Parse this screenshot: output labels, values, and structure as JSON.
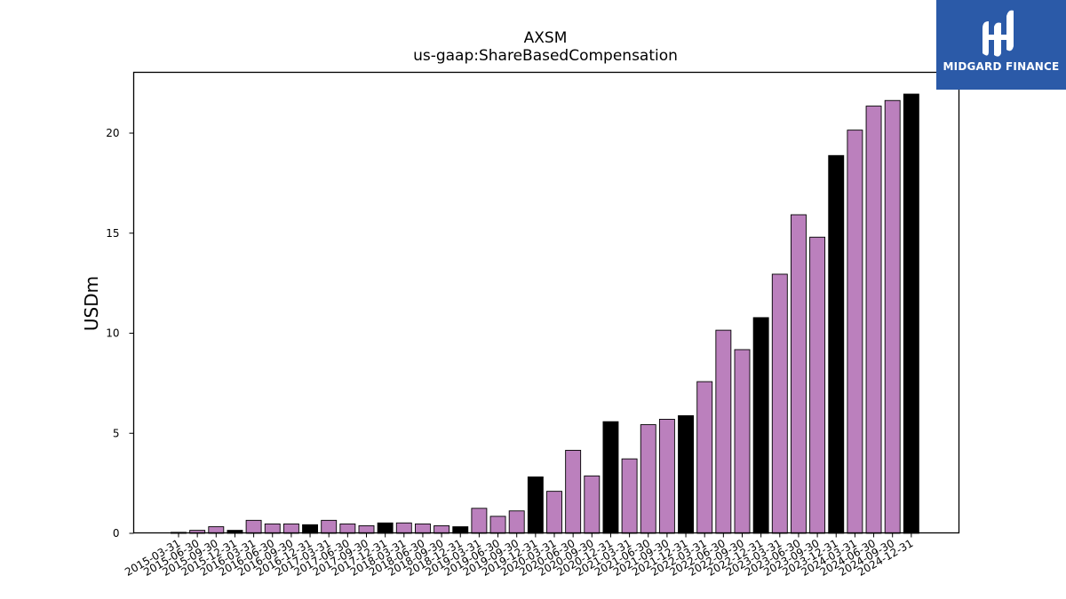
{
  "logo": {
    "text": "MIDGARD FINANCE",
    "background": "#2b5aa8"
  },
  "chart_data": {
    "type": "bar",
    "title": "AXSM",
    "subtitle": "us-gaap:ShareBasedCompensation",
    "xlabel": "",
    "ylabel": "USDm",
    "ylim": [
      0,
      23
    ],
    "yticks": [
      0,
      5,
      10,
      15,
      20
    ],
    "grid": false,
    "colors": {
      "quarter": "#bb80bd",
      "year_end": "#000000",
      "edge": "#000000"
    },
    "categories": [
      "2015-03-31",
      "2015-06-30",
      "2015-09-30",
      "2015-12-31",
      "2016-03-31",
      "2016-06-30",
      "2016-09-30",
      "2016-12-31",
      "2017-03-31",
      "2017-06-30",
      "2017-09-30",
      "2017-12-31",
      "2018-03-31",
      "2018-06-30",
      "2018-09-30",
      "2018-12-31",
      "2019-03-31",
      "2019-06-30",
      "2019-09-30",
      "2019-12-31",
      "2020-03-31",
      "2020-06-30",
      "2020-09-30",
      "2020-12-31",
      "2021-03-31",
      "2021-06-30",
      "2021-09-30",
      "2021-12-31",
      "2022-03-31",
      "2022-06-30",
      "2022-09-30",
      "2022-12-31",
      "2023-03-31",
      "2023-06-30",
      "2023-09-30",
      "2023-12-31",
      "2024-03-31",
      "2024-06-30",
      "2024-09-30",
      "2024-12-31"
    ],
    "values": [
      0.05,
      0.15,
      0.33,
      0.15,
      0.65,
      0.47,
      0.47,
      0.43,
      0.65,
      0.47,
      0.38,
      0.52,
      0.52,
      0.47,
      0.38,
      0.33,
      1.25,
      0.85,
      1.12,
      2.82,
      2.1,
      4.15,
      2.87,
      5.58,
      3.72,
      5.43,
      5.7,
      5.88,
      7.58,
      10.15,
      9.18,
      10.78,
      12.95,
      15.92,
      14.8,
      18.88,
      20.15,
      21.35,
      21.63,
      21.95
    ],
    "year_end": [
      false,
      false,
      false,
      true,
      false,
      false,
      false,
      true,
      false,
      false,
      false,
      true,
      false,
      false,
      false,
      true,
      false,
      false,
      false,
      true,
      false,
      false,
      false,
      true,
      false,
      false,
      false,
      true,
      false,
      false,
      false,
      true,
      false,
      false,
      false,
      true,
      false,
      false,
      false,
      true
    ]
  }
}
